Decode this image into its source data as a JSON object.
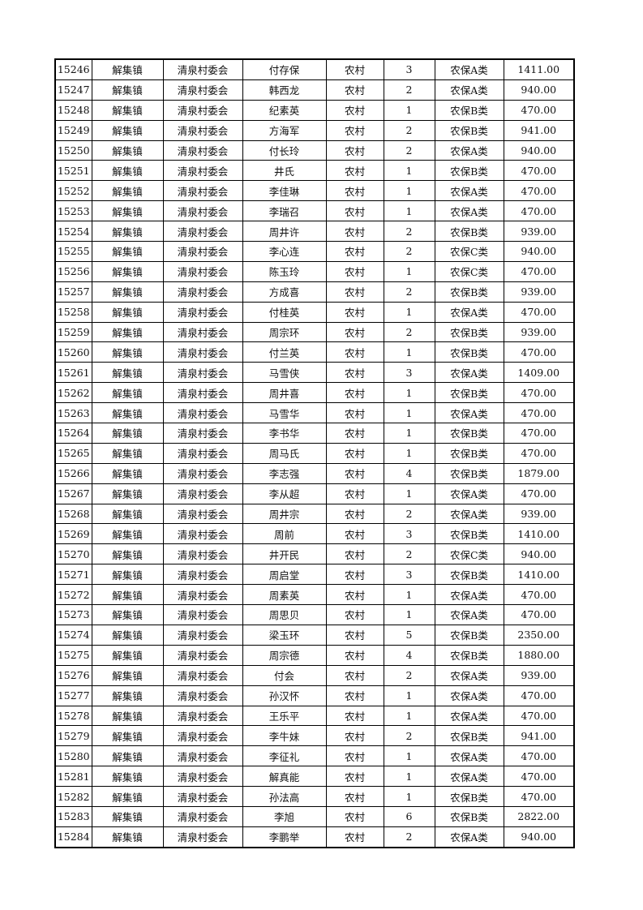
{
  "table": {
    "rows": [
      [
        "15246",
        "解集镇",
        "清泉村委会",
        "付存保",
        "农村",
        "3",
        "农保A类",
        "1411.00"
      ],
      [
        "15247",
        "解集镇",
        "清泉村委会",
        "韩西龙",
        "农村",
        "2",
        "农保A类",
        "940.00"
      ],
      [
        "15248",
        "解集镇",
        "清泉村委会",
        "纪素英",
        "农村",
        "1",
        "农保B类",
        "470.00"
      ],
      [
        "15249",
        "解集镇",
        "清泉村委会",
        "方海军",
        "农村",
        "2",
        "农保B类",
        "941.00"
      ],
      [
        "15250",
        "解集镇",
        "清泉村委会",
        "付长玲",
        "农村",
        "2",
        "农保A类",
        "940.00"
      ],
      [
        "15251",
        "解集镇",
        "清泉村委会",
        "井氏",
        "农村",
        "1",
        "农保B类",
        "470.00"
      ],
      [
        "15252",
        "解集镇",
        "清泉村委会",
        "李佳琳",
        "农村",
        "1",
        "农保A类",
        "470.00"
      ],
      [
        "15253",
        "解集镇",
        "清泉村委会",
        "李瑞召",
        "农村",
        "1",
        "农保A类",
        "470.00"
      ],
      [
        "15254",
        "解集镇",
        "清泉村委会",
        "周井许",
        "农村",
        "2",
        "农保B类",
        "939.00"
      ],
      [
        "15255",
        "解集镇",
        "清泉村委会",
        "李心连",
        "农村",
        "2",
        "农保C类",
        "940.00"
      ],
      [
        "15256",
        "解集镇",
        "清泉村委会",
        "陈玉玲",
        "农村",
        "1",
        "农保C类",
        "470.00"
      ],
      [
        "15257",
        "解集镇",
        "清泉村委会",
        "方成喜",
        "农村",
        "2",
        "农保B类",
        "939.00"
      ],
      [
        "15258",
        "解集镇",
        "清泉村委会",
        "付桂英",
        "农村",
        "1",
        "农保A类",
        "470.00"
      ],
      [
        "15259",
        "解集镇",
        "清泉村委会",
        "周宗环",
        "农村",
        "2",
        "农保B类",
        "939.00"
      ],
      [
        "15260",
        "解集镇",
        "清泉村委会",
        "付兰英",
        "农村",
        "1",
        "农保B类",
        "470.00"
      ],
      [
        "15261",
        "解集镇",
        "清泉村委会",
        "马雪侠",
        "农村",
        "3",
        "农保A类",
        "1409.00"
      ],
      [
        "15262",
        "解集镇",
        "清泉村委会",
        "周井喜",
        "农村",
        "1",
        "农保B类",
        "470.00"
      ],
      [
        "15263",
        "解集镇",
        "清泉村委会",
        "马雪华",
        "农村",
        "1",
        "农保A类",
        "470.00"
      ],
      [
        "15264",
        "解集镇",
        "清泉村委会",
        "李书华",
        "农村",
        "1",
        "农保B类",
        "470.00"
      ],
      [
        "15265",
        "解集镇",
        "清泉村委会",
        "周马氏",
        "农村",
        "1",
        "农保B类",
        "470.00"
      ],
      [
        "15266",
        "解集镇",
        "清泉村委会",
        "李志强",
        "农村",
        "4",
        "农保B类",
        "1879.00"
      ],
      [
        "15267",
        "解集镇",
        "清泉村委会",
        "李从超",
        "农村",
        "1",
        "农保A类",
        "470.00"
      ],
      [
        "15268",
        "解集镇",
        "清泉村委会",
        "周井宗",
        "农村",
        "2",
        "农保A类",
        "939.00"
      ],
      [
        "15269",
        "解集镇",
        "清泉村委会",
        "周前",
        "农村",
        "3",
        "农保B类",
        "1410.00"
      ],
      [
        "15270",
        "解集镇",
        "清泉村委会",
        "井开民",
        "农村",
        "2",
        "农保C类",
        "940.00"
      ],
      [
        "15271",
        "解集镇",
        "清泉村委会",
        "周启堂",
        "农村",
        "3",
        "农保B类",
        "1410.00"
      ],
      [
        "15272",
        "解集镇",
        "清泉村委会",
        "周素英",
        "农村",
        "1",
        "农保A类",
        "470.00"
      ],
      [
        "15273",
        "解集镇",
        "清泉村委会",
        "周思贝",
        "农村",
        "1",
        "农保A类",
        "470.00"
      ],
      [
        "15274",
        "解集镇",
        "清泉村委会",
        "梁玉环",
        "农村",
        "5",
        "农保B类",
        "2350.00"
      ],
      [
        "15275",
        "解集镇",
        "清泉村委会",
        "周宗德",
        "农村",
        "4",
        "农保B类",
        "1880.00"
      ],
      [
        "15276",
        "解集镇",
        "清泉村委会",
        "付会",
        "农村",
        "2",
        "农保A类",
        "939.00"
      ],
      [
        "15277",
        "解集镇",
        "清泉村委会",
        "孙汉怀",
        "农村",
        "1",
        "农保A类",
        "470.00"
      ],
      [
        "15278",
        "解集镇",
        "清泉村委会",
        "王乐平",
        "农村",
        "1",
        "农保A类",
        "470.00"
      ],
      [
        "15279",
        "解集镇",
        "清泉村委会",
        "李牛妹",
        "农村",
        "2",
        "农保B类",
        "941.00"
      ],
      [
        "15280",
        "解集镇",
        "清泉村委会",
        "李征礼",
        "农村",
        "1",
        "农保A类",
        "470.00"
      ],
      [
        "15281",
        "解集镇",
        "清泉村委会",
        "解真能",
        "农村",
        "1",
        "农保A类",
        "470.00"
      ],
      [
        "15282",
        "解集镇",
        "清泉村委会",
        "孙法高",
        "农村",
        "1",
        "农保B类",
        "470.00"
      ],
      [
        "15283",
        "解集镇",
        "清泉村委会",
        "李旭",
        "农村",
        "6",
        "农保B类",
        "2822.00"
      ],
      [
        "15284",
        "解集镇",
        "清泉村委会",
        "李鹏举",
        "农村",
        "2",
        "农保A类",
        "940.00"
      ]
    ]
  }
}
